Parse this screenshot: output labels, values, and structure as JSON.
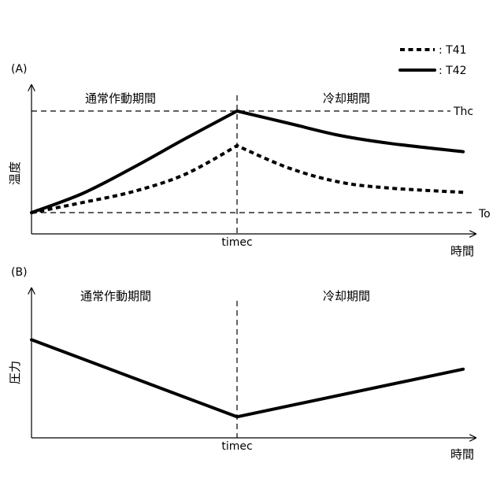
{
  "legend": [
    {
      "label": ": T41",
      "style": "dotted"
    },
    {
      "label": ": T42",
      "style": "solid"
    }
  ],
  "panel_a": {
    "label": "(A)",
    "ylabel": "温度",
    "xlabel": "時間",
    "phase_left": "通常作動期間",
    "phase_right": "冷却期間",
    "marker_x": "timec",
    "level_top": "Thc",
    "level_bottom": "To"
  },
  "panel_b": {
    "label": "(B)",
    "ylabel": "圧力",
    "xlabel": "時間",
    "phase_left": "通常作動期間",
    "phase_right": "冷却期間",
    "marker_x": "timec"
  },
  "chart_data": [
    {
      "type": "line",
      "panel": "A",
      "x_domain": [
        0,
        2
      ],
      "y_domain": [
        0,
        1
      ],
      "marker_at": 1,
      "levels": [
        {
          "name": "Thc",
          "y": 1.0
        },
        {
          "name": "To",
          "y": 0.0
        }
      ],
      "series": [
        {
          "name": "T41",
          "style": "dotted",
          "x": [
            0,
            0.25,
            0.5,
            0.75,
            1.0,
            1.25,
            1.5,
            1.75,
            2.1
          ],
          "y": [
            0.0,
            0.1,
            0.21,
            0.38,
            0.66,
            0.44,
            0.3,
            0.24,
            0.2
          ]
        },
        {
          "name": "T42",
          "style": "solid",
          "x": [
            0,
            0.25,
            0.5,
            0.75,
            1.0,
            1.25,
            1.5,
            1.75,
            2.1
          ],
          "y": [
            0.0,
            0.19,
            0.45,
            0.73,
            1.0,
            0.88,
            0.76,
            0.68,
            0.6
          ]
        }
      ]
    },
    {
      "type": "line",
      "panel": "B",
      "x_domain": [
        0,
        2
      ],
      "y_domain": [
        0,
        1
      ],
      "marker_at": 1,
      "series": [
        {
          "style": "solid",
          "x": [
            0,
            1.0,
            2.1
          ],
          "y": [
            0.7,
            0.15,
            0.49
          ]
        }
      ]
    }
  ]
}
